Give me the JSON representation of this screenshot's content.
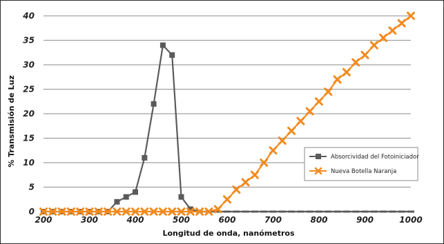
{
  "chart_data": {
    "type": "line",
    "xlabel": "Longitud de onda, nanómetros",
    "ylabel": "% Transmisión de Luz",
    "xlim": [
      200,
      1000
    ],
    "ylim": [
      0,
      40
    ],
    "x_ticks": [
      200,
      300,
      400,
      500,
      600,
      700,
      800,
      900,
      1000
    ],
    "y_ticks": [
      0,
      5,
      10,
      15,
      20,
      25,
      30,
      35,
      40
    ],
    "grid": "horizontal",
    "legend_position": "right",
    "series": [
      {
        "name": "Absorcividad del Fotoiniciador",
        "color": "#5a5a5a",
        "marker": "square",
        "x": [
          200,
          220,
          240,
          260,
          280,
          300,
          320,
          340,
          360,
          380,
          400,
          420,
          440,
          460,
          480,
          500,
          520,
          540,
          560,
          580,
          600,
          620,
          640,
          660,
          680,
          700,
          720,
          740,
          760,
          780,
          800,
          820,
          840,
          860,
          880,
          900,
          920,
          940,
          960,
          980,
          1000
        ],
        "y": [
          0,
          0,
          0,
          0,
          0,
          0,
          0,
          0,
          2,
          3,
          4,
          11,
          22,
          34,
          32,
          3,
          0.5,
          0,
          0,
          0,
          0,
          0,
          0,
          0,
          0,
          0,
          0,
          0,
          0,
          0,
          0,
          0,
          0,
          0,
          0,
          0,
          0,
          0,
          0,
          0,
          0
        ],
        "markers_until": 520
      },
      {
        "name": "Nueva Botella Naranja",
        "color": "#f28a1e",
        "marker": "x",
        "x": [
          200,
          220,
          240,
          260,
          280,
          300,
          320,
          340,
          360,
          380,
          400,
          420,
          440,
          460,
          480,
          500,
          520,
          540,
          560,
          580,
          600,
          620,
          640,
          660,
          680,
          700,
          720,
          740,
          760,
          780,
          800,
          820,
          840,
          860,
          880,
          900,
          920,
          940,
          960,
          980,
          1000
        ],
        "y": [
          0,
          0,
          0,
          0,
          0,
          0,
          0,
          0,
          0,
          0,
          0,
          0,
          0,
          0,
          0,
          0,
          0,
          0,
          0,
          0.5,
          2.5,
          4.5,
          6,
          7.5,
          10,
          12.5,
          14.5,
          16.5,
          18.5,
          20.5,
          22.5,
          24.5,
          27,
          28.5,
          30.5,
          32,
          34,
          35.5,
          37,
          38.5,
          40
        ]
      }
    ]
  }
}
